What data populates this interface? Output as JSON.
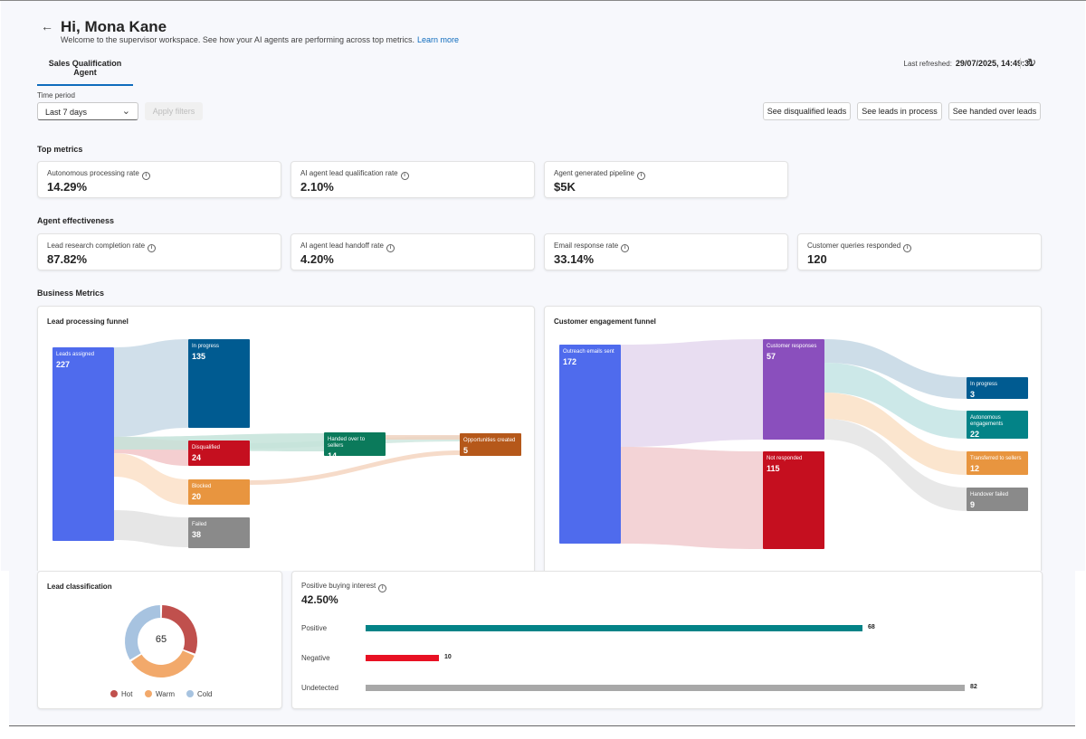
{
  "header": {
    "back_icon": "arrow-left-icon",
    "greeting": "Hi, Mona Kane",
    "subtitle": "Welcome to the supervisor workspace. See how your AI agents are performing across top metrics.",
    "learn_more": "Learn more"
  },
  "tabs": [
    {
      "label": "Sales Qualification Agent",
      "selected": true
    }
  ],
  "refresh": {
    "label": "Last refreshed:",
    "value": "29/07/2025, 14:49:31",
    "icon": "refresh-icon"
  },
  "filters": {
    "time_period_label": "Time period",
    "time_period_value": "Last 7 days",
    "apply_label": "Apply filters"
  },
  "actions": {
    "disqualified": "See disqualified leads",
    "in_process": "See leads in process",
    "handed_over": "See handed over leads"
  },
  "top_metrics": {
    "title": "Top metrics",
    "items": [
      {
        "label": "Autonomous processing rate",
        "value": "14.29%"
      },
      {
        "label": "AI agent lead qualification rate",
        "value": "2.10%"
      },
      {
        "label": "Agent generated pipeline",
        "value": "$5K"
      }
    ]
  },
  "agent_effectiveness": {
    "title": "Agent effectiveness",
    "items": [
      {
        "label": "Lead research completion rate",
        "value": "87.82%"
      },
      {
        "label": "AI agent lead handoff rate",
        "value": "4.20%"
      },
      {
        "label": "Email response rate",
        "value": "33.14%"
      },
      {
        "label": "Customer queries responded",
        "value": "120"
      }
    ]
  },
  "business_metrics": {
    "title": "Business Metrics"
  },
  "lead_funnel": {
    "title": "Lead processing funnel",
    "nodes": [
      {
        "label": "Leads assigned",
        "value": "227",
        "color": "#4f6bed"
      },
      {
        "label": "In progress",
        "value": "135",
        "color": "#005b91"
      },
      {
        "label": "Disqualified",
        "value": "24",
        "color": "#c50f1f"
      },
      {
        "label": "Blocked",
        "value": "20",
        "color": "#e8953f"
      },
      {
        "label": "Failed",
        "value": "38",
        "color": "#8a8a8a"
      },
      {
        "label": "Handed over to sellers",
        "value": "14",
        "color": "#0b7a5b"
      },
      {
        "label": "Opportunities created",
        "value": "5",
        "color": "#b5581a"
      }
    ]
  },
  "engagement_funnel": {
    "title": "Customer engagement funnel",
    "nodes": [
      {
        "label": "Outreach emails sent",
        "value": "172",
        "color": "#4f6bed"
      },
      {
        "label": "Customer responses",
        "value": "57",
        "color": "#8a4fbd"
      },
      {
        "label": "Not responded",
        "value": "115",
        "color": "#c50f1f"
      },
      {
        "label": "In progress",
        "value": "3",
        "color": "#005b91"
      },
      {
        "label": "Autonomous engagements",
        "value": "22",
        "color": "#038387"
      },
      {
        "label": "Transferred to sellers",
        "value": "12",
        "color": "#e8953f"
      },
      {
        "label": "Handover failed",
        "value": "9",
        "color": "#8a8a8a"
      }
    ]
  },
  "lead_classification": {
    "title": "Lead classification",
    "total": "65",
    "legend": [
      {
        "label": "Hot",
        "color": "#c0504d",
        "share": 0.31
      },
      {
        "label": "Warm",
        "color": "#f2a96b",
        "share": 0.35
      },
      {
        "label": "Cold",
        "color": "#a7c3e0",
        "share": 0.34
      }
    ]
  },
  "buying_interest": {
    "title": "Positive buying interest",
    "value": "42.50%",
    "bars": [
      {
        "label": "Positive",
        "value": 68,
        "value_text": "68",
        "color": "#038387"
      },
      {
        "label": "Negative",
        "value": 10,
        "value_text": "10",
        "color": "#e81123"
      },
      {
        "label": "Undetected",
        "value": 82,
        "value_text": "82",
        "color": "#a8a8a8"
      }
    ],
    "max": 82
  }
}
